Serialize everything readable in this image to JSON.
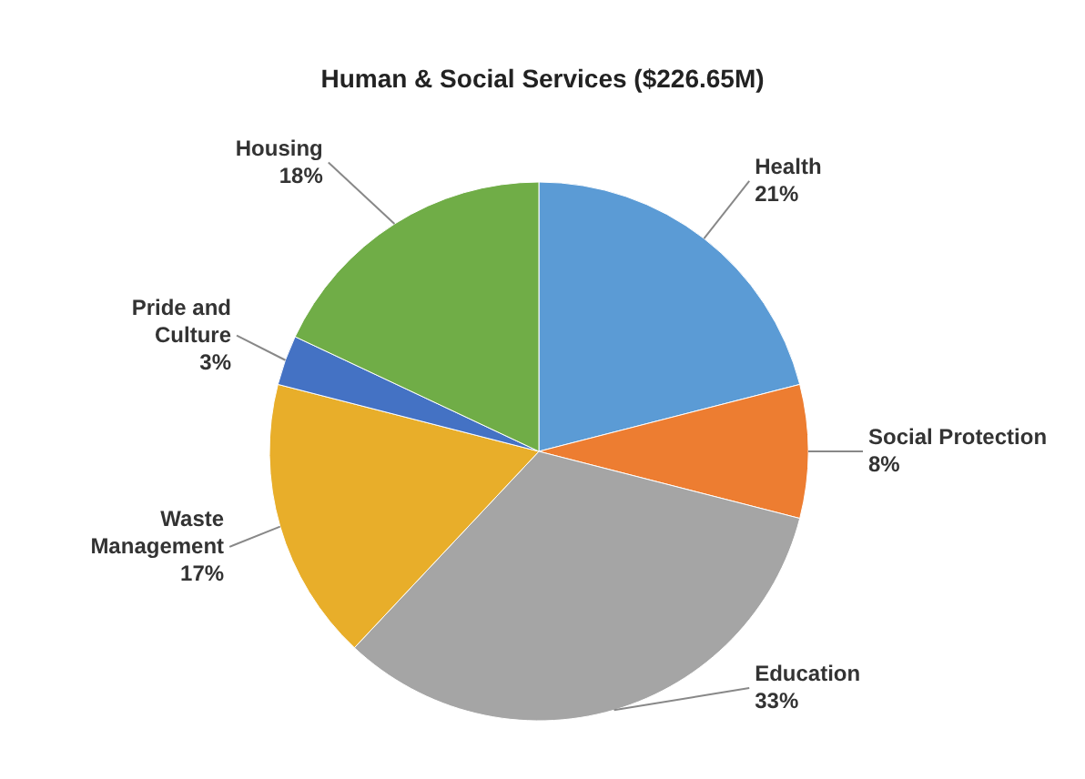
{
  "chart_data": {
    "type": "pie",
    "title": "Human & Social Services  ($226.65M)",
    "categories": [
      "Health",
      "Social Protection",
      "Education",
      "Waste Management",
      "Pride and Culture",
      "Housing"
    ],
    "values": [
      21,
      8,
      33,
      17,
      3,
      18
    ],
    "value_labels": [
      "21%",
      "8%",
      "33%",
      "17%",
      "3%",
      "18%"
    ],
    "colors": [
      "#5b9bd5",
      "#ed7d31",
      "#a5a5a5",
      "#e8ae2a",
      "#4472c4",
      "#70ad47"
    ]
  }
}
